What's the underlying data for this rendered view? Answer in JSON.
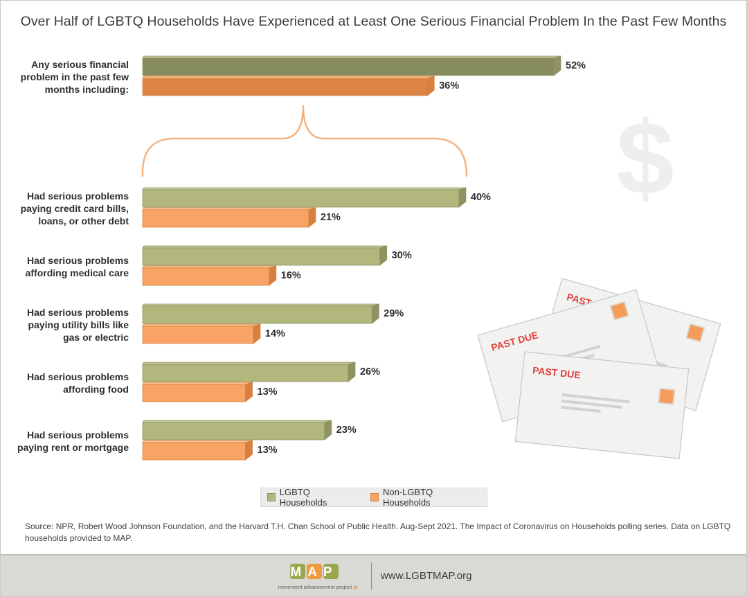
{
  "chart_data": {
    "type": "bar",
    "orientation": "horizontal",
    "title": "Over Half of LGBTQ Households Have Experienced at Least One Serious Financial Problem In the Past Few Months",
    "categories": [
      [
        "Any serious financial",
        "problem in the past few",
        "months including:"
      ],
      [
        "Had serious problems",
        "paying credit card bills,",
        "loans, or other debt"
      ],
      [
        "Had serious problems",
        "affording medical care"
      ],
      [
        "Had serious problems",
        "paying utility bills like",
        "gas or electric"
      ],
      [
        "Had serious problems",
        "affording food"
      ],
      [
        "Had serious problems",
        "paying rent or mortgage"
      ]
    ],
    "series": [
      {
        "name": "LGBTQ Households",
        "values": [
          52,
          40,
          30,
          29,
          26,
          23
        ],
        "labels": [
          "52%",
          "40%",
          "30%",
          "29%",
          "26%",
          "23%"
        ]
      },
      {
        "name": "Non-LGBTQ Households",
        "values": [
          36,
          21,
          16,
          14,
          13,
          13
        ],
        "labels": [
          "36%",
          "21%",
          "16%",
          "14%",
          "13%",
          "13%"
        ]
      }
    ],
    "unit": "%",
    "xlim": [
      0,
      100
    ],
    "legend": "bottom-center",
    "grid": false
  },
  "colors": {
    "lgbtq_face": "#b2b77e",
    "lgbtq_top": "#c6ca98",
    "lgbtq_side": "#8e9361",
    "lgbtq_highlight_face": "#878c5e",
    "non_face": "#f9a466",
    "non_top": "#fbc394",
    "non_side": "#d7803f",
    "non_highlight_face": "#de8546",
    "brace": "#f6b27d",
    "dollar": "#eeeeec"
  },
  "illustration": {
    "dollar_symbol": "$",
    "envelopes": [
      "PAST DUE",
      "PAST DUE",
      "PAST DUE"
    ]
  },
  "legend": {
    "items": [
      {
        "label": "LGBTQ Households",
        "color": "#b2b77e",
        "border": "#8e9361"
      },
      {
        "label": "Non-LGBTQ Households",
        "color": "#f9a466",
        "border": "#d7803f"
      }
    ]
  },
  "source": "Source: NPR, Robert Wood Johnson Foundation, and the Harvard T.H. Chan School of Public Health. Aug-Sept 2021. The Impact of Coronavirus on Households polling series. Data on LGBTQ households provided to MAP.",
  "footer": {
    "logo_text": "MAP",
    "logo_tagline": "movement advancement project",
    "website": "www.LGBTMAP.org"
  }
}
